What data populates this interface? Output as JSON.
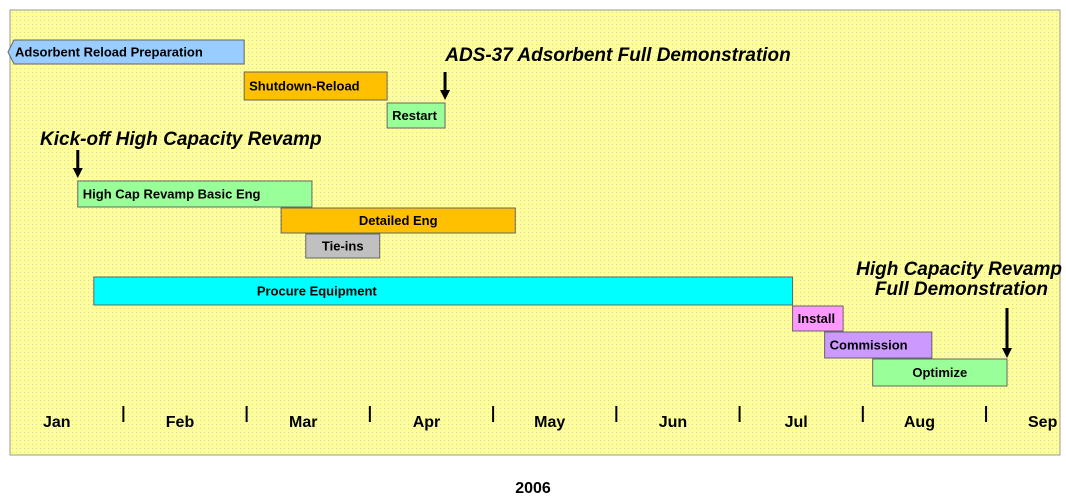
{
  "chart_data": {
    "type": "gantt",
    "categories": [
      "Jan",
      "Feb",
      "Mar",
      "Apr",
      "May",
      "Jun",
      "Jul",
      "Aug",
      "Sep"
    ],
    "xlim": [
      0.08,
      8.6
    ],
    "x_label": "2006",
    "tasks": [
      {
        "name": "Adsorbent Reload Preparation",
        "start": 0.08,
        "end": 1.98,
        "color": "#99ccff"
      },
      {
        "name": "Shutdown-Reload",
        "start": 1.98,
        "end": 3.14,
        "color": "#ffc000"
      },
      {
        "name": "Restart",
        "start": 3.14,
        "end": 3.61,
        "color": "#99ff99"
      },
      {
        "name": "High Cap Revamp Basic Eng",
        "start": 0.63,
        "end": 2.53,
        "color": "#99ff99"
      },
      {
        "name": "Detailed Eng",
        "start": 2.28,
        "end": 4.18,
        "color": "#ffc000"
      },
      {
        "name": "Tie-ins",
        "start": 2.48,
        "end": 3.08,
        "color": "#c0c0c0"
      },
      {
        "name": "Procure Equipment",
        "start": 0.76,
        "end": 6.43,
        "color": "#00ffff"
      },
      {
        "name": "Install",
        "start": 6.43,
        "end": 6.84,
        "color": "#ff99ff"
      },
      {
        "name": "Commission",
        "start": 6.69,
        "end": 7.56,
        "color": "#cc99ff"
      },
      {
        "name": "Optimize",
        "start": 7.08,
        "end": 8.17,
        "color": "#99ff99"
      }
    ],
    "milestones": [
      {
        "label": "ADS-37 Adsorbent Full Demonstration",
        "at": 3.61
      },
      {
        "label": "Kick-off High Capacity Revamp",
        "at": 0.63
      },
      {
        "label": [
          "High Capacity Revamp",
          "Full Demonstration"
        ],
        "at": 8.17
      }
    ]
  }
}
